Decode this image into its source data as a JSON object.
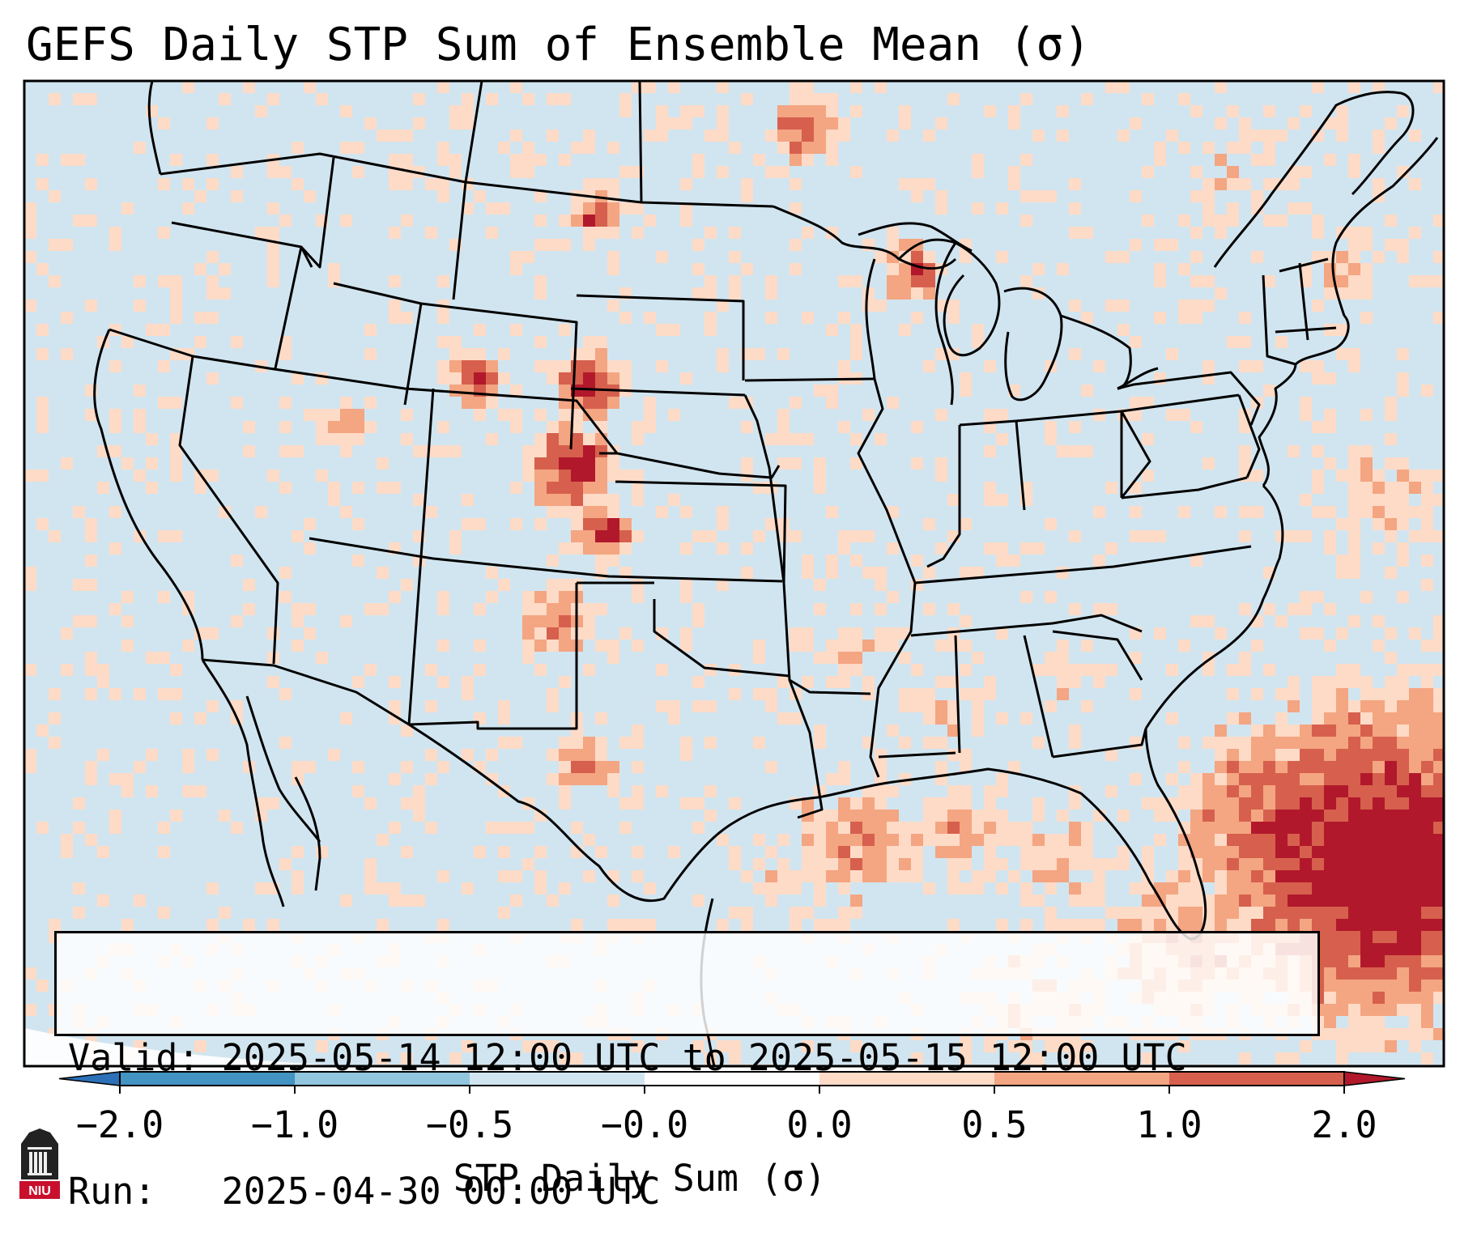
{
  "title": "GEFS Daily STP Sum of Ensemble Mean (σ)",
  "info": {
    "valid_label": "Valid:",
    "valid_value": "2025-05-14 12:00 UTC to 2025-05-15 12:00 UTC",
    "run_label": "Run:",
    "run_value": "2025-04-30 00:00 UTC"
  },
  "colorbar": {
    "label": "STP Daily Sum (σ)",
    "tick_labels": [
      "−2.0",
      "−1.0",
      "−0.5",
      "−0.0",
      "0.0",
      "0.5",
      "1.0",
      "2.0"
    ],
    "colors": [
      "#2c70b8",
      "#4393c3",
      "#92c5de",
      "#d1e5f0",
      "#ffffff",
      "#fddbc7",
      "#f4a582",
      "#d6604d",
      "#b2182b"
    ],
    "extend": "both"
  },
  "map": {
    "projection": "Lambert Conformal (CONUS)",
    "background_color": "#d1e5f0",
    "border_color": "#000000"
  },
  "logo": {
    "text": "NIU"
  }
}
